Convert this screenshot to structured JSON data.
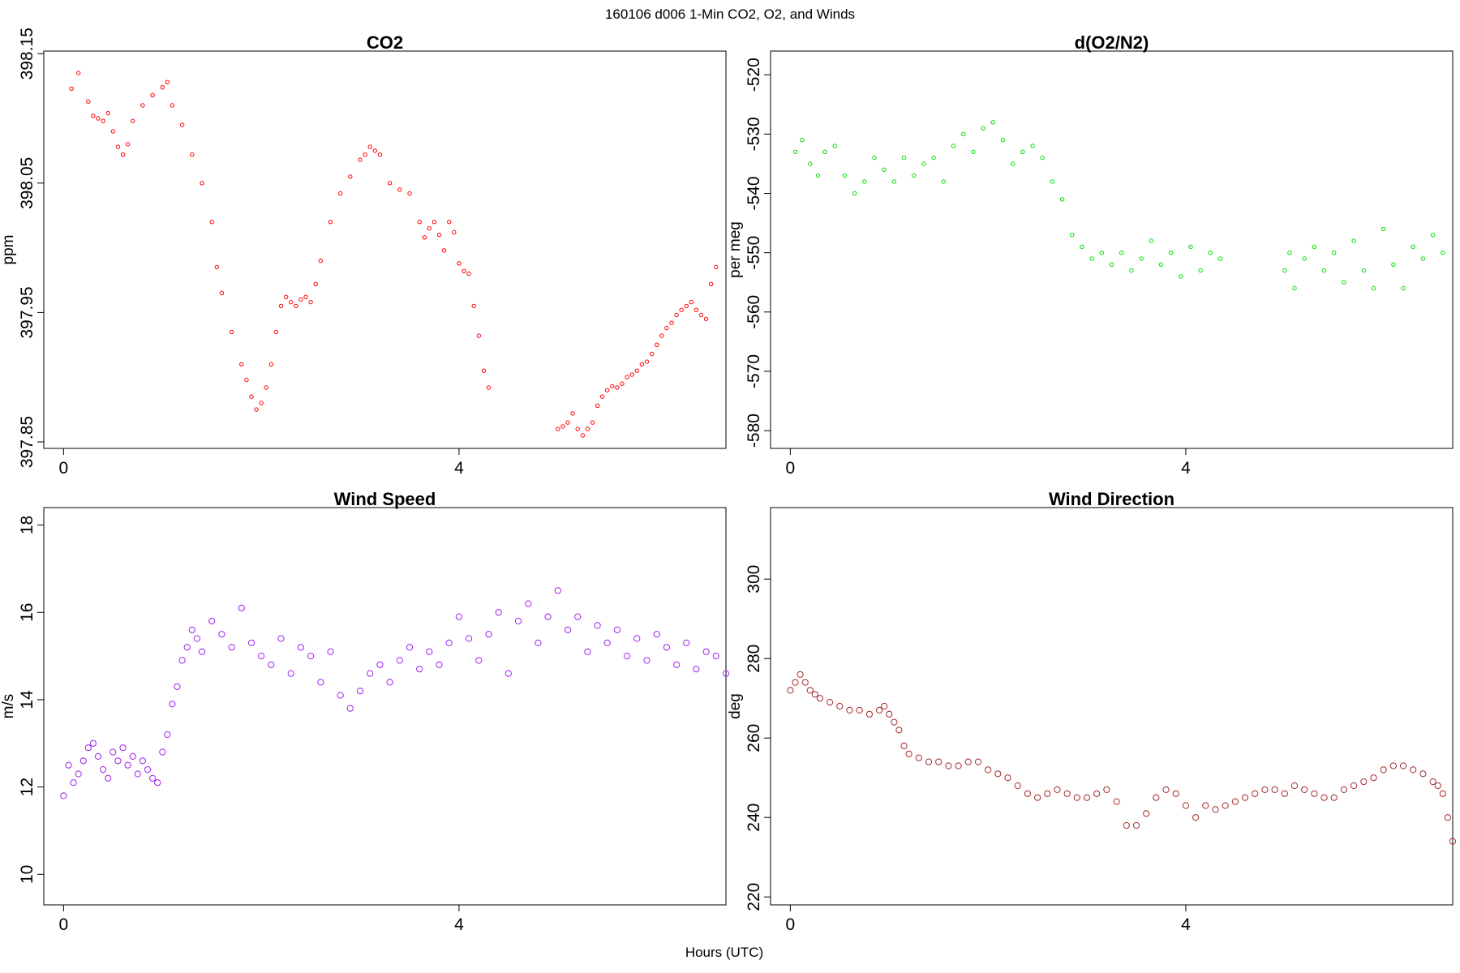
{
  "figure": {
    "suptitle": "160106   d006   1-Min CO2, O2, and Winds",
    "xlabel": "Hours (UTC)"
  },
  "chart_data": [
    {
      "type": "scatter",
      "title": "CO2",
      "ylabel": "ppm",
      "xlim": [
        -0.2,
        6.7
      ],
      "ylim": [
        397.845,
        398.152
      ],
      "xticks": [
        0,
        4
      ],
      "yticks": [
        397.85,
        397.95,
        398.05,
        398.15
      ],
      "ytick_labels": [
        "397.85",
        "397.95",
        "398.05",
        "398.15"
      ],
      "color": "#ff0000",
      "marker_size": 2.2,
      "series": [
        {
          "x": [
            0.08,
            0.15,
            0.25,
            0.3,
            0.35,
            0.4,
            0.45,
            0.5,
            0.55,
            0.6,
            0.65,
            0.7,
            0.8,
            0.9,
            1.0,
            1.05,
            1.1,
            1.2,
            1.3,
            1.4,
            1.5,
            1.55,
            1.6,
            1.7,
            1.8,
            1.85,
            1.9,
            1.95,
            2.0,
            2.05,
            2.1,
            2.15,
            2.2,
            2.25,
            2.3,
            2.35,
            2.4,
            2.45,
            2.5,
            2.55,
            2.6,
            2.7,
            2.8,
            2.9,
            3.0,
            3.05,
            3.1,
            3.15,
            3.2,
            3.3,
            3.4,
            3.5,
            3.6,
            3.65,
            3.7,
            3.75,
            3.8,
            3.85,
            3.9,
            3.95,
            4.0,
            4.05,
            4.1,
            4.15,
            4.2,
            4.25,
            4.3,
            5.0,
            5.05,
            5.1,
            5.15,
            5.2,
            5.25,
            5.3,
            5.35,
            5.4,
            5.45,
            5.5,
            5.55,
            5.6,
            5.65,
            5.7,
            5.75,
            5.8,
            5.85,
            5.9,
            5.95,
            6.0,
            6.05,
            6.1,
            6.15,
            6.2,
            6.25,
            6.3,
            6.35,
            6.4,
            6.45,
            6.5,
            6.55,
            6.6
          ],
          "y": [
            398.123,
            398.135,
            398.113,
            398.102,
            398.1,
            398.098,
            398.104,
            398.09,
            398.078,
            398.072,
            398.08,
            398.098,
            398.11,
            398.118,
            398.124,
            398.128,
            398.11,
            398.095,
            398.072,
            398.05,
            398.02,
            397.985,
            397.965,
            397.935,
            397.91,
            397.898,
            397.885,
            397.875,
            397.88,
            397.892,
            397.91,
            397.935,
            397.955,
            397.962,
            397.958,
            397.955,
            397.96,
            397.962,
            397.958,
            397.972,
            397.99,
            398.02,
            398.042,
            398.055,
            398.068,
            398.072,
            398.078,
            398.075,
            398.072,
            398.05,
            398.045,
            398.042,
            398.02,
            398.008,
            398.015,
            398.02,
            398.01,
            397.998,
            398.02,
            398.012,
            397.988,
            397.982,
            397.98,
            397.955,
            397.932,
            397.905,
            397.892,
            397.86,
            397.862,
            397.865,
            397.872,
            397.86,
            397.855,
            397.86,
            397.865,
            397.878,
            397.885,
            397.89,
            397.893,
            397.892,
            397.895,
            397.9,
            397.902,
            397.905,
            397.91,
            397.912,
            397.918,
            397.925,
            397.932,
            397.938,
            397.942,
            397.948,
            397.952,
            397.955,
            397.958,
            397.952,
            397.948,
            397.945,
            397.972,
            397.985
          ]
        }
      ]
    },
    {
      "type": "scatter",
      "title": "d(O2/N2)",
      "ylabel": "per meg",
      "xlim": [
        -0.2,
        6.7
      ],
      "ylim": [
        -583,
        -516
      ],
      "xticks": [
        0,
        4
      ],
      "yticks": [
        -580,
        -570,
        -560,
        -550,
        -540,
        -530,
        -520
      ],
      "ytick_labels": [
        "-580",
        "-570",
        "-560",
        "-550",
        "-540",
        "-530",
        "-520"
      ],
      "color": "#00dd00",
      "marker_size": 2.2,
      "series": [
        {
          "x": [
            0.05,
            0.12,
            0.2,
            0.28,
            0.35,
            0.45,
            0.55,
            0.65,
            0.75,
            0.85,
            0.95,
            1.05,
            1.15,
            1.25,
            1.35,
            1.45,
            1.55,
            1.65,
            1.75,
            1.85,
            1.95,
            2.05,
            2.15,
            2.25,
            2.35,
            2.45,
            2.55,
            2.65,
            2.75,
            2.85,
            2.95,
            3.05,
            3.15,
            3.25,
            3.35,
            3.45,
            3.55,
            3.65,
            3.75,
            3.85,
            3.95,
            4.05,
            4.15,
            4.25,
            4.35,
            5.0,
            5.05,
            5.1,
            5.2,
            5.3,
            5.4,
            5.5,
            5.6,
            5.7,
            5.8,
            5.9,
            6.0,
            6.1,
            6.2,
            6.3,
            6.4,
            6.5,
            6.6
          ],
          "y": [
            -533,
            -531,
            -535,
            -537,
            -533,
            -532,
            -537,
            -540,
            -538,
            -534,
            -536,
            -538,
            -534,
            -537,
            -535,
            -534,
            -538,
            -532,
            -530,
            -533,
            -529,
            -528,
            -531,
            -535,
            -533,
            -532,
            -534,
            -538,
            -541,
            -547,
            -549,
            -551,
            -550,
            -552,
            -550,
            -553,
            -551,
            -548,
            -552,
            -550,
            -554,
            -549,
            -553,
            -550,
            -551,
            -553,
            -550,
            -556,
            -551,
            -549,
            -553,
            -550,
            -555,
            -548,
            -553,
            -556,
            -546,
            -552,
            -556,
            -549,
            -551,
            -547,
            -550
          ]
        }
      ]
    },
    {
      "type": "scatter",
      "title": "Wind Speed",
      "ylabel": "m/s",
      "xlim": [
        -0.2,
        6.7
      ],
      "ylim": [
        9.3,
        18.4
      ],
      "xticks": [
        0,
        4
      ],
      "yticks": [
        10,
        12,
        14,
        16,
        18
      ],
      "ytick_labels": [
        "10",
        "12",
        "14",
        "16",
        "18"
      ],
      "color": "#a020f0",
      "marker_size": 3.6,
      "series": [
        {
          "x": [
            0.0,
            0.05,
            0.1,
            0.15,
            0.2,
            0.25,
            0.3,
            0.35,
            0.4,
            0.45,
            0.5,
            0.55,
            0.6,
            0.65,
            0.7,
            0.75,
            0.8,
            0.85,
            0.9,
            0.95,
            1.0,
            1.05,
            1.1,
            1.15,
            1.2,
            1.25,
            1.3,
            1.35,
            1.4,
            1.5,
            1.6,
            1.7,
            1.8,
            1.9,
            2.0,
            2.1,
            2.2,
            2.3,
            2.4,
            2.5,
            2.6,
            2.7,
            2.8,
            2.9,
            3.0,
            3.1,
            3.2,
            3.3,
            3.4,
            3.5,
            3.6,
            3.7,
            3.8,
            3.9,
            4.0,
            4.1,
            4.2,
            4.3,
            4.4,
            4.5,
            4.6,
            4.7,
            4.8,
            4.9,
            5.0,
            5.1,
            5.2,
            5.3,
            5.4,
            5.5,
            5.6,
            5.7,
            5.8,
            5.9,
            6.0,
            6.1,
            6.2,
            6.3,
            6.4,
            6.5,
            6.6,
            6.7
          ],
          "y": [
            11.8,
            12.5,
            12.1,
            12.3,
            12.6,
            12.9,
            13.0,
            12.7,
            12.4,
            12.2,
            12.8,
            12.6,
            12.9,
            12.5,
            12.7,
            12.3,
            12.6,
            12.4,
            12.2,
            12.1,
            12.8,
            13.2,
            13.9,
            14.3,
            14.9,
            15.2,
            15.6,
            15.4,
            15.1,
            15.8,
            15.5,
            15.2,
            16.1,
            15.3,
            15.0,
            14.8,
            15.4,
            14.6,
            15.2,
            15.0,
            14.4,
            15.1,
            14.1,
            13.8,
            14.2,
            14.6,
            14.8,
            14.4,
            14.9,
            15.2,
            14.7,
            15.1,
            14.8,
            15.3,
            15.9,
            15.4,
            14.9,
            15.5,
            16.0,
            14.6,
            15.8,
            16.2,
            15.3,
            15.9,
            16.5,
            15.6,
            15.9,
            15.1,
            15.7,
            15.3,
            15.6,
            15.0,
            15.4,
            14.9,
            15.5,
            15.2,
            14.8,
            15.3,
            14.7,
            15.1,
            15.0,
            14.6
          ]
        }
      ]
    },
    {
      "type": "scatter",
      "title": "Wind Direction",
      "ylabel": "deg",
      "xlim": [
        -0.2,
        6.7
      ],
      "ylim": [
        218,
        318
      ],
      "xticks": [
        0,
        4
      ],
      "yticks": [
        220,
        240,
        260,
        280,
        300
      ],
      "ytick_labels": [
        "220",
        "240",
        "260",
        "280",
        "300"
      ],
      "color": "#a52a2a",
      "marker_size": 3.6,
      "series": [
        {
          "x": [
            0.0,
            0.05,
            0.1,
            0.15,
            0.2,
            0.25,
            0.3,
            0.4,
            0.5,
            0.6,
            0.7,
            0.8,
            0.9,
            0.95,
            1.0,
            1.05,
            1.1,
            1.15,
            1.2,
            1.3,
            1.4,
            1.5,
            1.6,
            1.7,
            1.8,
            1.9,
            2.0,
            2.1,
            2.2,
            2.3,
            2.4,
            2.5,
            2.6,
            2.7,
            2.8,
            2.9,
            3.0,
            3.1,
            3.2,
            3.3,
            3.4,
            3.5,
            3.6,
            3.7,
            3.8,
            3.9,
            4.0,
            4.1,
            4.2,
            4.3,
            4.4,
            4.5,
            4.6,
            4.7,
            4.8,
            4.9,
            5.0,
            5.1,
            5.2,
            5.3,
            5.4,
            5.5,
            5.6,
            5.7,
            5.8,
            5.9,
            6.0,
            6.1,
            6.2,
            6.3,
            6.4,
            6.5,
            6.55,
            6.6,
            6.65,
            6.7
          ],
          "y": [
            272,
            274,
            276,
            274,
            272,
            271,
            270,
            269,
            268,
            267,
            267,
            266,
            267,
            268,
            266,
            264,
            262,
            258,
            256,
            255,
            254,
            254,
            253,
            253,
            254,
            254,
            252,
            251,
            250,
            248,
            246,
            245,
            246,
            247,
            246,
            245,
            245,
            246,
            247,
            244,
            238,
            238,
            241,
            245,
            247,
            246,
            243,
            240,
            243,
            242,
            243,
            244,
            245,
            246,
            247,
            247,
            246,
            248,
            247,
            246,
            245,
            245,
            247,
            248,
            249,
            250,
            252,
            253,
            253,
            252,
            251,
            249,
            248,
            246,
            240,
            234
          ]
        }
      ]
    }
  ]
}
